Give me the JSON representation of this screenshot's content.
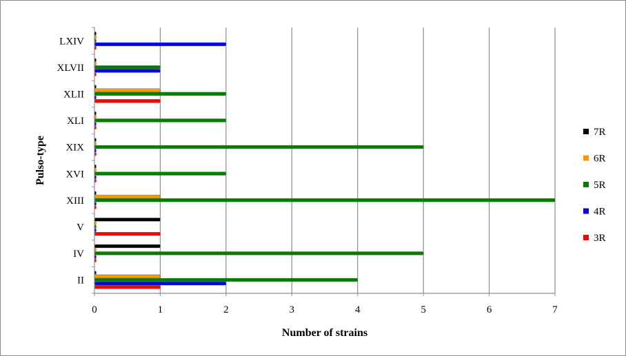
{
  "chart_data": {
    "type": "bar",
    "orientation": "horizontal",
    "title": "",
    "xlabel": "Number of strains",
    "ylabel": "Pulso-type",
    "xlim": [
      0,
      7
    ],
    "x_ticks": [
      "0",
      "1",
      "2",
      "3",
      "4",
      "5",
      "6",
      "7"
    ],
    "grid": "vertical",
    "legend_position": "right",
    "categories": [
      "II",
      "IV",
      "V",
      "XIII",
      "XVI",
      "XIX",
      "XLI",
      "XLII",
      "XLVII",
      "LXIV"
    ],
    "series": [
      {
        "name": "3R",
        "color": "#ff0000",
        "values": [
          1,
          0,
          1,
          0,
          0,
          0,
          0,
          1,
          0,
          0
        ]
      },
      {
        "name": "4R",
        "color": "#0000ff",
        "values": [
          2,
          0,
          0,
          0,
          0,
          0,
          0,
          0,
          1,
          2
        ]
      },
      {
        "name": "5R",
        "color": "#008000",
        "values": [
          4,
          5,
          0,
          7,
          2,
          5,
          2,
          2,
          1,
          0
        ]
      },
      {
        "name": "6R",
        "color": "#ff9900",
        "values": [
          1,
          0,
          0,
          1,
          0,
          0,
          0,
          1,
          0,
          0
        ]
      },
      {
        "name": "7R",
        "color": "#000000",
        "values": [
          0,
          1,
          1,
          0,
          0,
          0,
          0,
          0,
          0,
          0
        ]
      }
    ],
    "legend_order": [
      "7R",
      "6R",
      "5R",
      "4R",
      "3R"
    ]
  }
}
